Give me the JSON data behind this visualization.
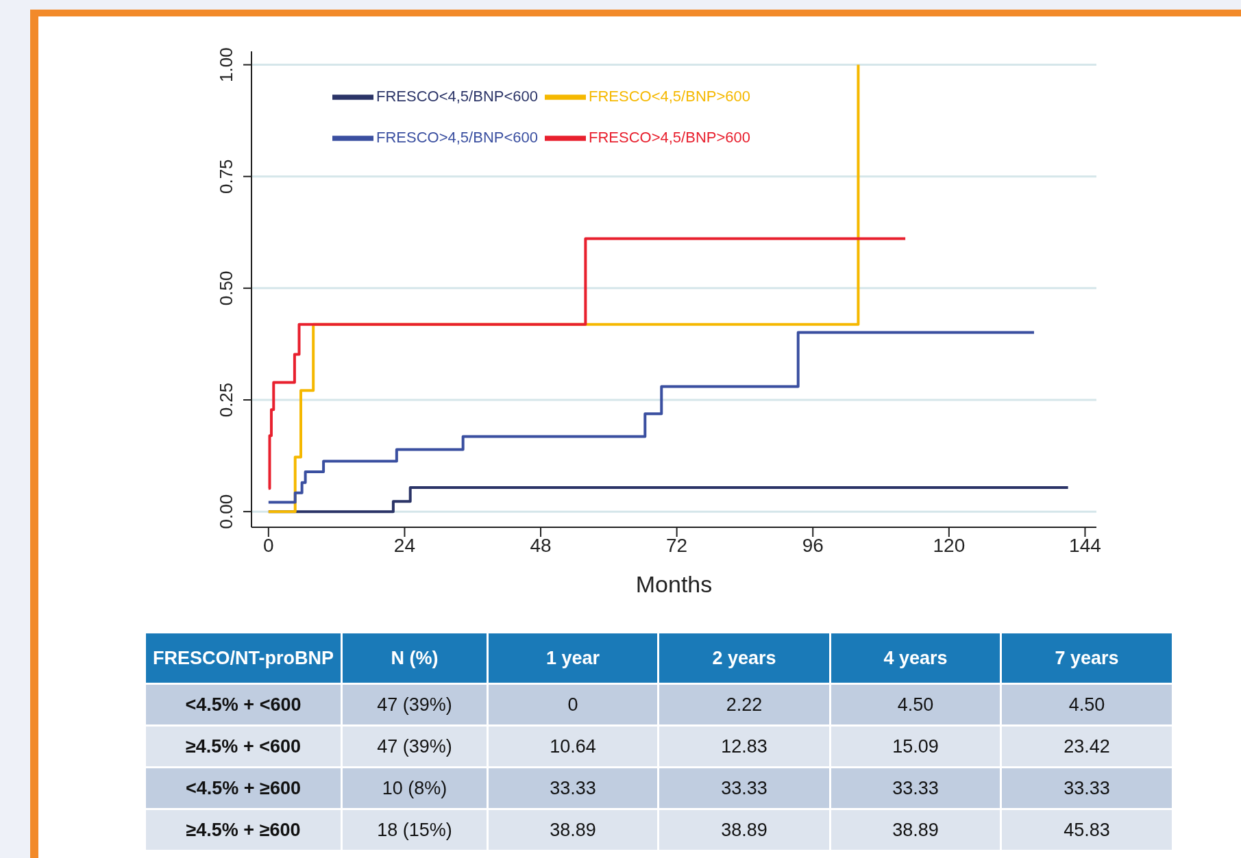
{
  "chart_data": {
    "type": "step",
    "xlabel": "Months",
    "xlim": [
      -3,
      146
    ],
    "xticks": [
      0,
      24,
      48,
      72,
      96,
      120,
      144
    ],
    "ylim": [
      -0.035,
      1.03
    ],
    "yticks": [
      {
        "value": 0,
        "label": "0.00"
      },
      {
        "value": 0.25,
        "label": "0.25"
      },
      {
        "value": 0.5,
        "label": "0.50"
      },
      {
        "value": 0.75,
        "label": "0.75"
      },
      {
        "value": 1,
        "label": "1.00"
      }
    ],
    "grid": "y",
    "legend": "top left",
    "marker": "none",
    "line_style": "solid",
    "series": [
      {
        "name": "FRESCO<4,5/BNP<600",
        "color": "#2b3467",
        "x": [
          0,
          22,
          25,
          141
        ],
        "values": [
          0,
          0.023,
          0.054,
          0.054
        ]
      },
      {
        "name": "FRESCO<4,5/BNP>600",
        "color": "#f5b800",
        "x": [
          0,
          4.7,
          5.7,
          7.9,
          104,
          104
        ],
        "values": [
          0,
          0.122,
          0.271,
          0.419,
          1,
          1
        ]
      },
      {
        "name": "FRESCO>4,5/BNP<600",
        "color": "#3a4fa0",
        "x": [
          0,
          4.7,
          5.9,
          6.5,
          9.7,
          22.6,
          34.3,
          66.4,
          69.3,
          93.4,
          135
        ],
        "values": [
          0.021,
          0.042,
          0.065,
          0.089,
          0.113,
          0.139,
          0.168,
          0.219,
          0.28,
          0.401,
          0.401
        ]
      },
      {
        "name": "FRESCO>4,5/BNP>600",
        "color": "#e8202e",
        "x": [
          0,
          0.2,
          0.5,
          0.9,
          4.6,
          5.4,
          55.9,
          112.3
        ],
        "values": [
          0.052,
          0.17,
          0.228,
          0.289,
          0.352,
          0.419,
          0.611,
          0.611
        ]
      }
    ],
    "annotations": [
      "FRESCO/NT-proBNP",
      "N (%)",
      "1 year",
      "2 years",
      "4 years",
      "7 years",
      "<4.5% + <600",
      "47 (39%)",
      "0",
      "2.22",
      "4.50",
      "4.50",
      "≥4.5% + <600",
      "47 (39%)",
      "10.64",
      "12.83",
      "15.09",
      "23.42",
      "<4.5% + ≥600",
      "10 (8%)",
      "33.33",
      "33.33",
      "33.33",
      "33.33",
      "≥4.5% + ≥600",
      "18 (15%)",
      "38.89",
      "38.89",
      "38.89",
      "45.83"
    ]
  }
}
